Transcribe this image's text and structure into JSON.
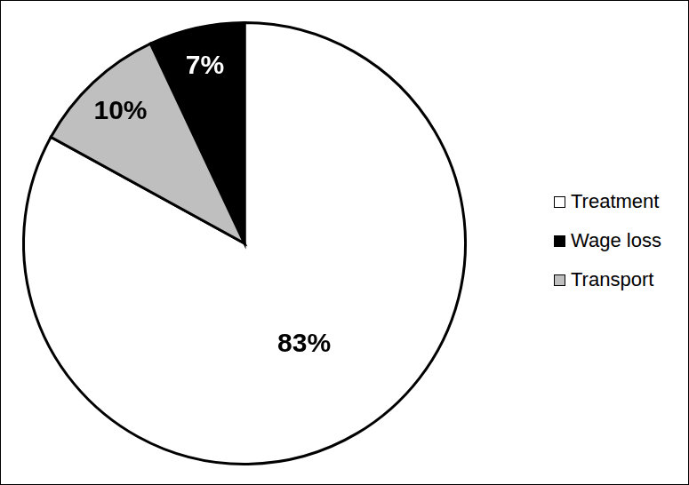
{
  "chart_data": {
    "type": "pie",
    "categories": [
      "Treatment",
      "Wage loss",
      "Transport"
    ],
    "values": [
      83,
      7,
      10
    ],
    "value_labels": [
      "83%",
      "7%",
      "10%"
    ],
    "colors": [
      "#ffffff",
      "#000000",
      "#bfbfbf"
    ],
    "data_labels": true,
    "legend": "right"
  }
}
